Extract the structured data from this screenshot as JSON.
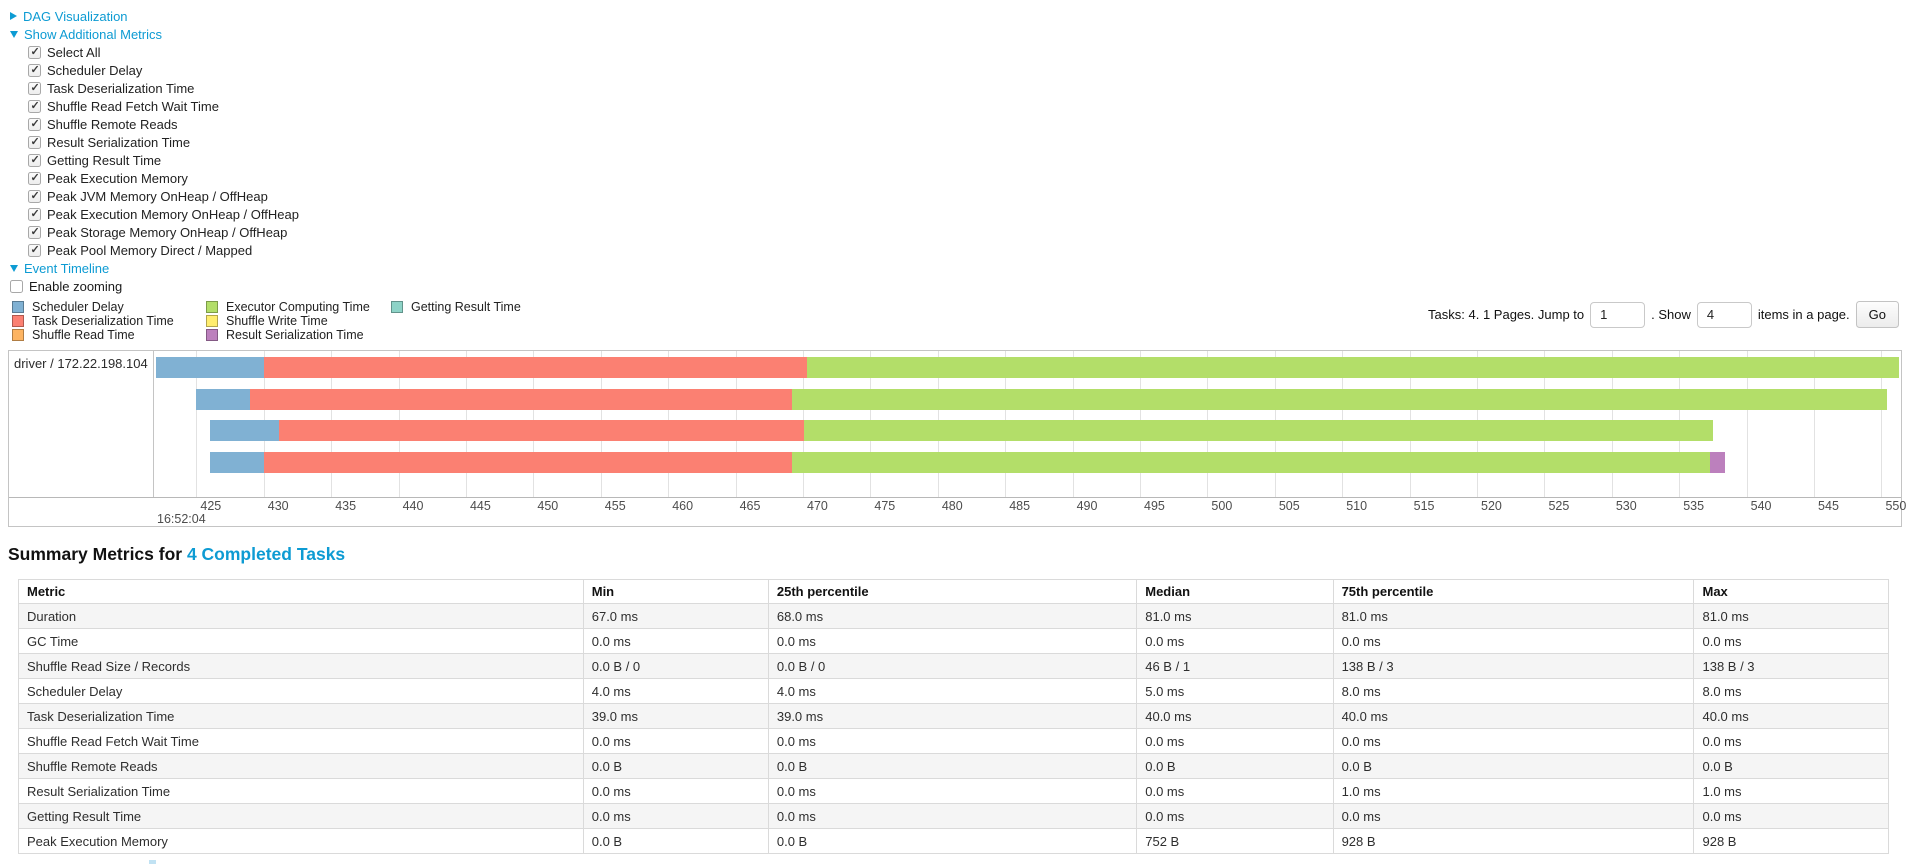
{
  "controls": {
    "dag_label": "DAG Visualization",
    "metrics_label": "Show Additional Metrics",
    "timeline_label": "Event Timeline",
    "enable_zooming": {
      "label": "Enable zooming",
      "checked": false
    },
    "metric_checkboxes": [
      {
        "label": "Select All",
        "checked": true
      },
      {
        "label": "Scheduler Delay",
        "checked": true
      },
      {
        "label": "Task Deserialization Time",
        "checked": true
      },
      {
        "label": "Shuffle Read Fetch Wait Time",
        "checked": true
      },
      {
        "label": "Shuffle Remote Reads",
        "checked": true
      },
      {
        "label": "Result Serialization Time",
        "checked": true
      },
      {
        "label": "Getting Result Time",
        "checked": true
      },
      {
        "label": "Peak Execution Memory",
        "checked": true
      },
      {
        "label": "Peak JVM Memory OnHeap / OffHeap",
        "checked": true
      },
      {
        "label": "Peak Execution Memory OnHeap / OffHeap",
        "checked": true
      },
      {
        "label": "Peak Storage Memory OnHeap / OffHeap",
        "checked": true
      },
      {
        "label": "Peak Pool Memory Direct / Mapped",
        "checked": true
      }
    ]
  },
  "legend": {
    "columns": [
      [
        {
          "label": "Scheduler Delay",
          "color": "#80B1D3"
        },
        {
          "label": "Task Deserialization Time",
          "color": "#FB8072"
        },
        {
          "label": "Shuffle Read Time",
          "color": "#FDB462"
        }
      ],
      [
        {
          "label": "Executor Computing Time",
          "color": "#B3DE69"
        },
        {
          "label": "Shuffle Write Time",
          "color": "#FFED6F"
        },
        {
          "label": "Result Serialization Time",
          "color": "#BC80BD"
        }
      ],
      [
        {
          "label": "Getting Result Time",
          "color": "#8DD3C7"
        }
      ]
    ]
  },
  "pagination": {
    "prefix": "Tasks: 4. 1 Pages. Jump to",
    "jump_value": "1",
    "show_label": ". Show",
    "show_value": "4",
    "suffix": "items in a page.",
    "go_label": "Go"
  },
  "chart_data": {
    "type": "timeline-gantt",
    "group_label": "driver / 172.22.198.104",
    "axis": {
      "min": 421.93,
      "max": 551.45,
      "ticks": [
        425,
        430,
        435,
        440,
        445,
        450,
        455,
        460,
        465,
        470,
        475,
        480,
        485,
        490,
        495,
        500,
        505,
        510,
        515,
        520,
        525,
        530,
        535,
        540,
        545,
        550
      ],
      "major_label": "16:52:04",
      "units": "milliseconds after 16:52:04"
    },
    "colors": {
      "scheduler_delay": "#80B1D3",
      "task_deserialization": "#FB8072",
      "shuffle_read": "#FDB462",
      "executor_computing": "#B3DE69",
      "shuffle_write": "#FFED6F",
      "result_serialization": "#BC80BD",
      "getting_result": "#8DD3C7"
    },
    "tasks": [
      {
        "segments": [
          {
            "name": "scheduler_delay",
            "start": 422.0,
            "end": 430.0
          },
          {
            "name": "task_deserialization",
            "start": 430.0,
            "end": 470.3
          },
          {
            "name": "executor_computing",
            "start": 470.3,
            "end": 551.3
          }
        ]
      },
      {
        "segments": [
          {
            "name": "scheduler_delay",
            "start": 425.0,
            "end": 429.0
          },
          {
            "name": "task_deserialization",
            "start": 429.0,
            "end": 469.2
          },
          {
            "name": "executor_computing",
            "start": 469.2,
            "end": 550.4
          }
        ]
      },
      {
        "segments": [
          {
            "name": "scheduler_delay",
            "start": 426.0,
            "end": 431.1
          },
          {
            "name": "task_deserialization",
            "start": 431.1,
            "end": 470.1
          },
          {
            "name": "executor_computing",
            "start": 470.1,
            "end": 537.5
          }
        ]
      },
      {
        "segments": [
          {
            "name": "scheduler_delay",
            "start": 426.0,
            "end": 430.0
          },
          {
            "name": "task_deserialization",
            "start": 430.0,
            "end": 469.2
          },
          {
            "name": "executor_computing",
            "start": 469.2,
            "end": 537.3
          },
          {
            "name": "result_serialization",
            "start": 537.3,
            "end": 538.4
          }
        ]
      }
    ]
  },
  "summary": {
    "title_prefix": "Summary Metrics for ",
    "title_link": "4 Completed Tasks",
    "columns": [
      "Metric",
      "Min",
      "25th percentile",
      "Median",
      "75th percentile",
      "Max"
    ],
    "rows": [
      {
        "metric": "Duration",
        "values": [
          "67.0 ms",
          "68.0 ms",
          "81.0 ms",
          "81.0 ms",
          "81.0 ms"
        ]
      },
      {
        "metric": "GC Time",
        "values": [
          "0.0 ms",
          "0.0 ms",
          "0.0 ms",
          "0.0 ms",
          "0.0 ms"
        ]
      },
      {
        "metric": "Shuffle Read Size / Records",
        "values": [
          "0.0 B / 0",
          "0.0 B / 0",
          "46 B / 1",
          "138 B / 3",
          "138 B / 3"
        ]
      },
      {
        "metric": "Scheduler Delay",
        "values": [
          "4.0 ms",
          "4.0 ms",
          "5.0 ms",
          "8.0 ms",
          "8.0 ms"
        ]
      },
      {
        "metric": "Task Deserialization Time",
        "values": [
          "39.0 ms",
          "39.0 ms",
          "40.0 ms",
          "40.0 ms",
          "40.0 ms"
        ]
      },
      {
        "metric": "Shuffle Read Fetch Wait Time",
        "values": [
          "0.0 ms",
          "0.0 ms",
          "0.0 ms",
          "0.0 ms",
          "0.0 ms"
        ]
      },
      {
        "metric": "Shuffle Remote Reads",
        "values": [
          "0.0 B",
          "0.0 B",
          "0.0 B",
          "0.0 B",
          "0.0 B"
        ]
      },
      {
        "metric": "Result Serialization Time",
        "values": [
          "0.0 ms",
          "0.0 ms",
          "0.0 ms",
          "1.0 ms",
          "1.0 ms"
        ]
      },
      {
        "metric": "Getting Result Time",
        "values": [
          "0.0 ms",
          "0.0 ms",
          "0.0 ms",
          "0.0 ms",
          "0.0 ms"
        ]
      },
      {
        "metric": "Peak Execution Memory",
        "values": [
          "0.0 B",
          "0.0 B",
          "752 B",
          "928 B",
          "928 B"
        ]
      }
    ],
    "col_widths": [
      "30.2%",
      "9.9%",
      "19.7%",
      "10.5%",
      "19.3%",
      "10.4%"
    ]
  }
}
